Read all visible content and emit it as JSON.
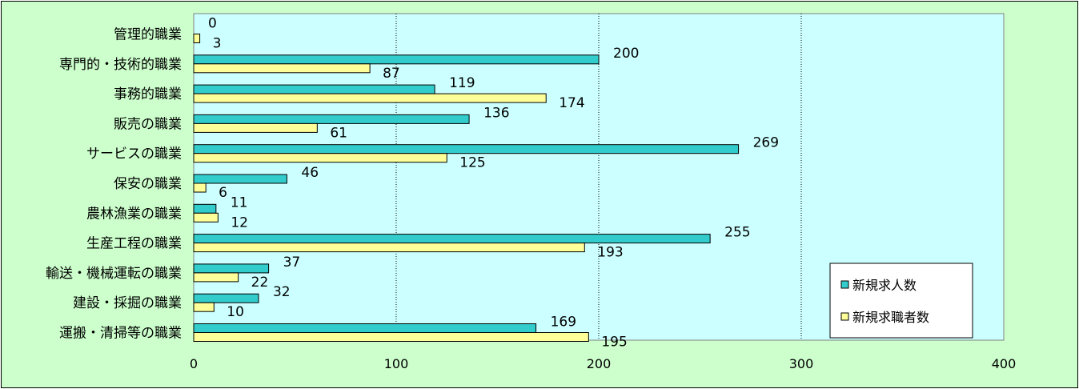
{
  "chart_data": {
    "type": "bar",
    "orientation": "horizontal",
    "categories": [
      "管理的職業",
      "専門的・技術的職業",
      "事務的職業",
      "販売の職業",
      "サービスの職業",
      "保安の職業",
      "農林漁業の職業",
      "生産工程の職業",
      "輸送・機械運転の職業",
      "建設・採掘の職業",
      "運搬・清掃等の職業"
    ],
    "series": [
      {
        "name": "新規求人数",
        "color": "#33cccc",
        "values": [
          0,
          200,
          119,
          136,
          269,
          46,
          11,
          255,
          37,
          32,
          169
        ]
      },
      {
        "name": "新規求職者数",
        "color": "#ffff99",
        "values": [
          3,
          87,
          174,
          61,
          125,
          6,
          12,
          193,
          22,
          10,
          195
        ]
      }
    ],
    "xlim": [
      0,
      400
    ],
    "xticks": [
      0,
      100,
      200,
      300,
      400
    ],
    "plot_background": "#ccffff",
    "chart_background": "#ccffcc",
    "grid": "vertical dotted",
    "legend_position": "bottom-right"
  }
}
